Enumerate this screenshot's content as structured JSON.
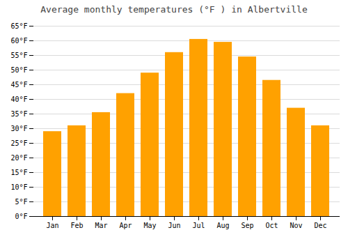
{
  "chart_data": {
    "type": "bar",
    "title": "Average monthly temperatures (°F ) in Albertville",
    "categories": [
      "Jan",
      "Feb",
      "Mar",
      "Apr",
      "May",
      "Jun",
      "Jul",
      "Aug",
      "Sep",
      "Oct",
      "Nov",
      "Dec"
    ],
    "values": [
      29,
      31,
      35.5,
      42,
      49,
      56,
      60.5,
      59.5,
      54.5,
      46.5,
      37,
      31
    ],
    "color": "#FFA100",
    "ylim": [
      0,
      65
    ],
    "yticks": [
      {
        "value": 0,
        "label": "0°F"
      },
      {
        "value": 5,
        "label": "5°F"
      },
      {
        "value": 10,
        "label": "10°F"
      },
      {
        "value": 15,
        "label": "15°F"
      },
      {
        "value": 20,
        "label": "20°F"
      },
      {
        "value": 25,
        "label": "25°F"
      },
      {
        "value": 30,
        "label": "30°F"
      },
      {
        "value": 35,
        "label": "35°F"
      },
      {
        "value": 40,
        "label": "40°F"
      },
      {
        "value": 45,
        "label": "45°F"
      },
      {
        "value": 50,
        "label": "50°F"
      },
      {
        "value": 55,
        "label": "55°F"
      },
      {
        "value": 60,
        "label": "60°F"
      },
      {
        "value": 65,
        "label": "65°F"
      }
    ],
    "grid": true
  }
}
